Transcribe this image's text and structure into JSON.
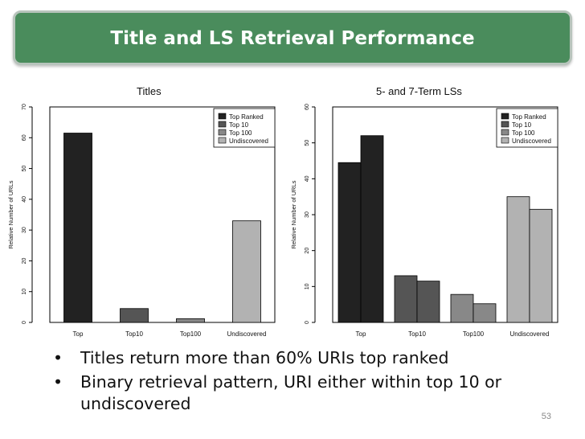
{
  "slide": {
    "title": "Title and LS Retrieval Performance",
    "bullets": [
      "Titles return more than 60% URIs top ranked",
      "Binary retrieval pattern, URI either within top 10 or undiscovered"
    ],
    "bullet_symbol": "•",
    "page_number": "53",
    "colors": {
      "banner": "#4a8c5c",
      "banner_border": "#b8c4bc"
    }
  },
  "chart_data": [
    {
      "type": "bar",
      "title": "Titles",
      "ylabel": "Relative Number of URLs",
      "xlabel": "",
      "categories": [
        "Top",
        "Top10",
        "Top100",
        "Undiscovered"
      ],
      "values": [
        61.5,
        4.5,
        1.2,
        33
      ],
      "colors": [
        "#222222",
        "#555555",
        "#888888",
        "#b2b2b2"
      ],
      "ylim": [
        0,
        70
      ],
      "yticks": [
        0,
        10,
        20,
        30,
        40,
        50,
        60,
        70
      ],
      "legend": {
        "position": "top-right",
        "entries": [
          "Top Ranked",
          "Top 10",
          "Top 100",
          "Undiscovered"
        ]
      }
    },
    {
      "type": "bar",
      "title": "5- and 7-Term LSs",
      "ylabel": "Relative Number of URLs",
      "xlabel": "",
      "categories": [
        "Top",
        "Top10",
        "Top100",
        "Undiscovered"
      ],
      "series": [
        {
          "values": [
            44.5,
            13,
            7.8,
            35
          ]
        },
        {
          "values": [
            52,
            11.5,
            5.2,
            31.5
          ]
        }
      ],
      "colors": [
        "#222222",
        "#555555",
        "#888888",
        "#b2b2b2"
      ],
      "ylim": [
        0,
        60
      ],
      "yticks": [
        0,
        10,
        20,
        30,
        40,
        50,
        60
      ],
      "legend": {
        "position": "top-right",
        "entries": [
          "Top Ranked",
          "Top 10",
          "Top 100",
          "Undiscovered"
        ]
      }
    }
  ]
}
